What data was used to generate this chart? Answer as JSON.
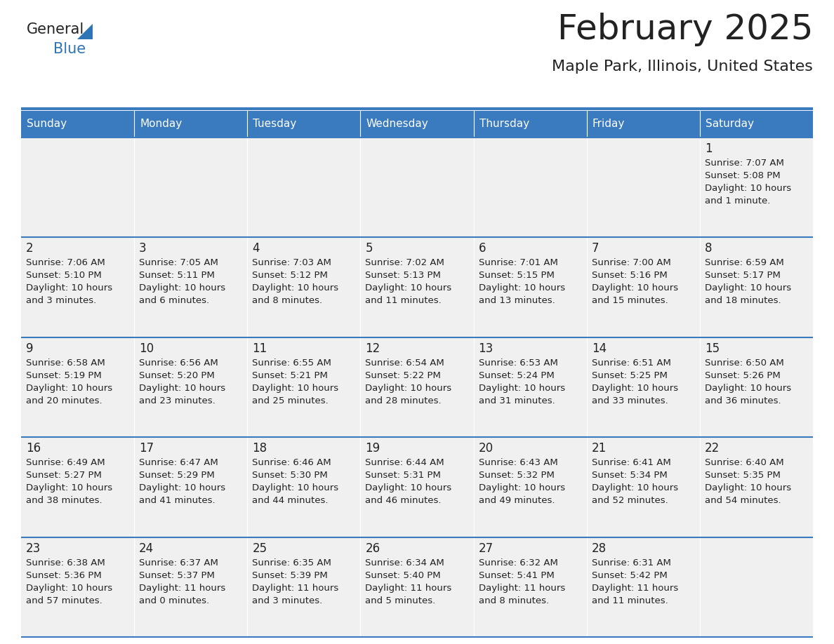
{
  "title": "February 2025",
  "subtitle": "Maple Park, Illinois, United States",
  "days_of_week": [
    "Sunday",
    "Monday",
    "Tuesday",
    "Wednesday",
    "Thursday",
    "Friday",
    "Saturday"
  ],
  "header_bg": "#3a7abf",
  "header_text": "#ffffff",
  "cell_bg": "#f0f0f0",
  "cell_border_color": "#3a7abf",
  "day_number_color": "#222222",
  "info_text_color": "#222222",
  "title_color": "#222222",
  "subtitle_color": "#222222",
  "logo_general_color": "#222222",
  "logo_blue_color": "#2e75b6",
  "calendar_data": [
    [
      null,
      null,
      null,
      null,
      null,
      null,
      {
        "day": "1",
        "sunrise": "7:07 AM",
        "sunset": "5:08 PM",
        "daylight": "10 hours",
        "daylight2": "and 1 minute."
      }
    ],
    [
      {
        "day": "2",
        "sunrise": "7:06 AM",
        "sunset": "5:10 PM",
        "daylight": "10 hours",
        "daylight2": "and 3 minutes."
      },
      {
        "day": "3",
        "sunrise": "7:05 AM",
        "sunset": "5:11 PM",
        "daylight": "10 hours",
        "daylight2": "and 6 minutes."
      },
      {
        "day": "4",
        "sunrise": "7:03 AM",
        "sunset": "5:12 PM",
        "daylight": "10 hours",
        "daylight2": "and 8 minutes."
      },
      {
        "day": "5",
        "sunrise": "7:02 AM",
        "sunset": "5:13 PM",
        "daylight": "10 hours",
        "daylight2": "and 11 minutes."
      },
      {
        "day": "6",
        "sunrise": "7:01 AM",
        "sunset": "5:15 PM",
        "daylight": "10 hours",
        "daylight2": "and 13 minutes."
      },
      {
        "day": "7",
        "sunrise": "7:00 AM",
        "sunset": "5:16 PM",
        "daylight": "10 hours",
        "daylight2": "and 15 minutes."
      },
      {
        "day": "8",
        "sunrise": "6:59 AM",
        "sunset": "5:17 PM",
        "daylight": "10 hours",
        "daylight2": "and 18 minutes."
      }
    ],
    [
      {
        "day": "9",
        "sunrise": "6:58 AM",
        "sunset": "5:19 PM",
        "daylight": "10 hours",
        "daylight2": "and 20 minutes."
      },
      {
        "day": "10",
        "sunrise": "6:56 AM",
        "sunset": "5:20 PM",
        "daylight": "10 hours",
        "daylight2": "and 23 minutes."
      },
      {
        "day": "11",
        "sunrise": "6:55 AM",
        "sunset": "5:21 PM",
        "daylight": "10 hours",
        "daylight2": "and 25 minutes."
      },
      {
        "day": "12",
        "sunrise": "6:54 AM",
        "sunset": "5:22 PM",
        "daylight": "10 hours",
        "daylight2": "and 28 minutes."
      },
      {
        "day": "13",
        "sunrise": "6:53 AM",
        "sunset": "5:24 PM",
        "daylight": "10 hours",
        "daylight2": "and 31 minutes."
      },
      {
        "day": "14",
        "sunrise": "6:51 AM",
        "sunset": "5:25 PM",
        "daylight": "10 hours",
        "daylight2": "and 33 minutes."
      },
      {
        "day": "15",
        "sunrise": "6:50 AM",
        "sunset": "5:26 PM",
        "daylight": "10 hours",
        "daylight2": "and 36 minutes."
      }
    ],
    [
      {
        "day": "16",
        "sunrise": "6:49 AM",
        "sunset": "5:27 PM",
        "daylight": "10 hours",
        "daylight2": "and 38 minutes."
      },
      {
        "day": "17",
        "sunrise": "6:47 AM",
        "sunset": "5:29 PM",
        "daylight": "10 hours",
        "daylight2": "and 41 minutes."
      },
      {
        "day": "18",
        "sunrise": "6:46 AM",
        "sunset": "5:30 PM",
        "daylight": "10 hours",
        "daylight2": "and 44 minutes."
      },
      {
        "day": "19",
        "sunrise": "6:44 AM",
        "sunset": "5:31 PM",
        "daylight": "10 hours",
        "daylight2": "and 46 minutes."
      },
      {
        "day": "20",
        "sunrise": "6:43 AM",
        "sunset": "5:32 PM",
        "daylight": "10 hours",
        "daylight2": "and 49 minutes."
      },
      {
        "day": "21",
        "sunrise": "6:41 AM",
        "sunset": "5:34 PM",
        "daylight": "10 hours",
        "daylight2": "and 52 minutes."
      },
      {
        "day": "22",
        "sunrise": "6:40 AM",
        "sunset": "5:35 PM",
        "daylight": "10 hours",
        "daylight2": "and 54 minutes."
      }
    ],
    [
      {
        "day": "23",
        "sunrise": "6:38 AM",
        "sunset": "5:36 PM",
        "daylight": "10 hours",
        "daylight2": "and 57 minutes."
      },
      {
        "day": "24",
        "sunrise": "6:37 AM",
        "sunset": "5:37 PM",
        "daylight": "11 hours",
        "daylight2": "and 0 minutes."
      },
      {
        "day": "25",
        "sunrise": "6:35 AM",
        "sunset": "5:39 PM",
        "daylight": "11 hours",
        "daylight2": "and 3 minutes."
      },
      {
        "day": "26",
        "sunrise": "6:34 AM",
        "sunset": "5:40 PM",
        "daylight": "11 hours",
        "daylight2": "and 5 minutes."
      },
      {
        "day": "27",
        "sunrise": "6:32 AM",
        "sunset": "5:41 PM",
        "daylight": "11 hours",
        "daylight2": "and 8 minutes."
      },
      {
        "day": "28",
        "sunrise": "6:31 AM",
        "sunset": "5:42 PM",
        "daylight": "11 hours",
        "daylight2": "and 11 minutes."
      },
      null
    ]
  ]
}
